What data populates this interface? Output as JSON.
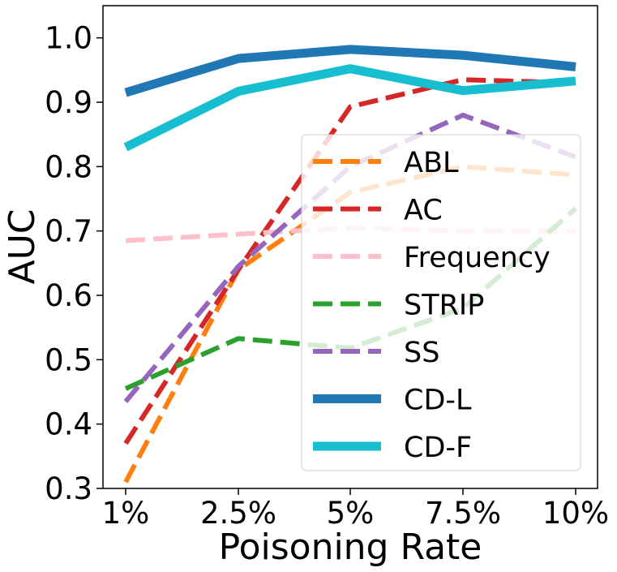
{
  "chart_data": {
    "type": "line",
    "title": "",
    "xlabel": "Poisoning Rate",
    "ylabel": "AUC",
    "categories": [
      "1%",
      "2.5%",
      "5%",
      "7.5%",
      "10%"
    ],
    "ylim": [
      0.3,
      1.05
    ],
    "yticks": [
      "0.3",
      "0.4",
      "0.5",
      "0.6",
      "0.7",
      "0.8",
      "0.9",
      "1.0"
    ],
    "grid": false,
    "legend_position": "lower-right",
    "series": [
      {
        "name": "ABL",
        "color": "#ff7f0e",
        "style": "dashed",
        "values": [
          0.31,
          0.64,
          0.76,
          0.8,
          0.787
        ]
      },
      {
        "name": "AC",
        "color": "#d62728",
        "style": "dashed",
        "values": [
          0.37,
          0.64,
          0.893,
          0.935,
          0.93
        ]
      },
      {
        "name": "Frequency",
        "color": "#ffc0cb",
        "style": "dashed",
        "values": [
          0.685,
          0.695,
          0.705,
          0.7,
          0.7
        ]
      },
      {
        "name": "STRIP",
        "color": "#2ca02c",
        "style": "dashed",
        "values": [
          0.455,
          0.533,
          0.518,
          0.58,
          0.735
        ]
      },
      {
        "name": "SS",
        "color": "#9467bd",
        "style": "dashed",
        "values": [
          0.435,
          0.645,
          0.8,
          0.88,
          0.815
        ]
      },
      {
        "name": "CD-L",
        "color": "#1f77b4",
        "style": "solid",
        "values": [
          0.915,
          0.968,
          0.982,
          0.973,
          0.955
        ]
      },
      {
        "name": "CD-F",
        "color": "#17becf",
        "style": "solid",
        "values": [
          0.83,
          0.917,
          0.952,
          0.918,
          0.933
        ]
      }
    ]
  }
}
